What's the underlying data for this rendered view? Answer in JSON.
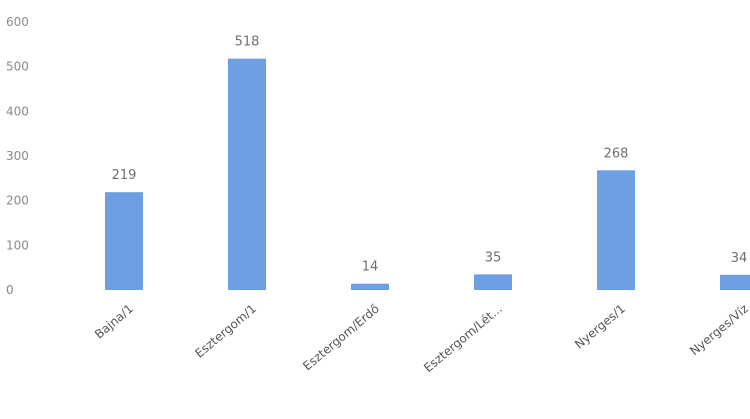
{
  "chart_data": {
    "type": "bar",
    "categories": [
      "Bajna/1",
      "Esztergom/1",
      "Esztergom/Erdő",
      "Esztergom/Lét...",
      "Nyerges/1",
      "Nyerges/Víz"
    ],
    "values": [
      219,
      518,
      14,
      35,
      268,
      34
    ],
    "data_labels": [
      "219",
      "518",
      "14",
      "35",
      "268",
      "34"
    ],
    "y_ticks": [
      0,
      100,
      200,
      300,
      400,
      500,
      600
    ],
    "ylim": [
      0,
      600
    ],
    "grid": false,
    "legend": "none",
    "bar_color": "#6f9fe3"
  }
}
